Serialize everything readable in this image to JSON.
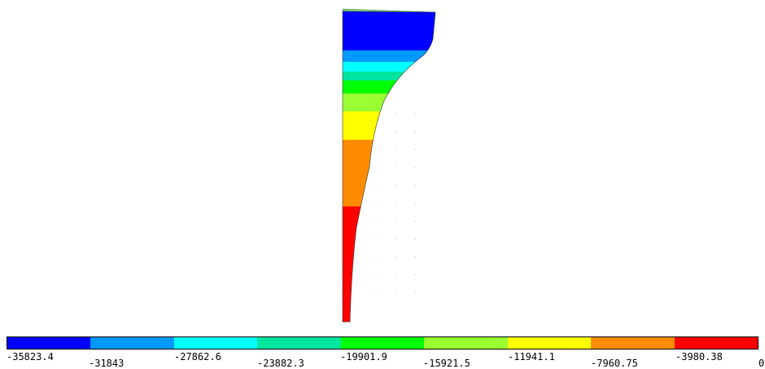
{
  "legend": {
    "colors": [
      "#0000ff",
      "#0099ff",
      "#00ffff",
      "#00e6a0",
      "#00ff00",
      "#99ff33",
      "#ffff00",
      "#ff8c00",
      "#ff0000"
    ],
    "labels": [
      "-35823.4",
      "-31843",
      "-27862.6",
      "-23882.3",
      "-19901.9",
      "-15921.5",
      "-11941.1",
      "-7960.75",
      "-3980.38",
      "0"
    ]
  },
  "contour_bands": [
    {
      "color": "#0000ff"
    },
    {
      "color": "#0099ff"
    },
    {
      "color": "#00ffff"
    },
    {
      "color": "#00e6a0"
    },
    {
      "color": "#00ff00"
    },
    {
      "color": "#99ff33"
    },
    {
      "color": "#ffff00"
    },
    {
      "color": "#ff8c00"
    },
    {
      "color": "#ff0000"
    }
  ]
}
